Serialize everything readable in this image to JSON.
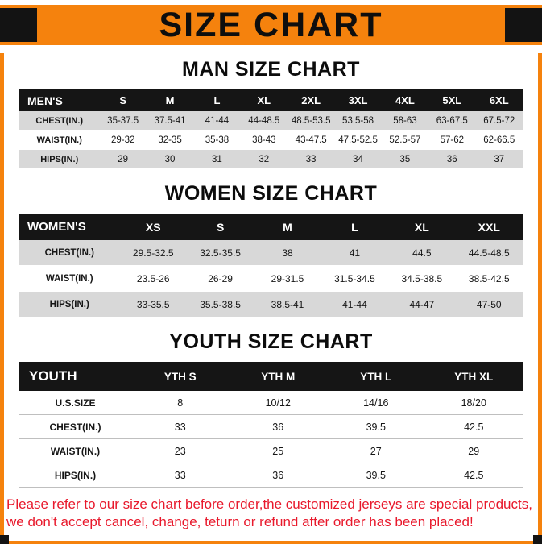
{
  "banner": {
    "title": "SIZE CHART"
  },
  "colors": {
    "orange": "#F5820D",
    "header_black": "#151515",
    "stripe_gray": "#D8D8D8",
    "footer_red": "#E8192C"
  },
  "man": {
    "heading": "MAN SIZE CHART",
    "table": {
      "header": [
        "MEN'S",
        "S",
        "M",
        "L",
        "XL",
        "2XL",
        "3XL",
        "4XL",
        "5XL",
        "6XL"
      ],
      "rows": [
        [
          "CHEST(IN.)",
          "35-37.5",
          "37.5-41",
          "41-44",
          "44-48.5",
          "48.5-53.5",
          "53.5-58",
          "58-63",
          "63-67.5",
          "67.5-72"
        ],
        [
          "WAIST(IN.)",
          "29-32",
          "32-35",
          "35-38",
          "38-43",
          "43-47.5",
          "47.5-52.5",
          "52.5-57",
          "57-62",
          "62-66.5"
        ],
        [
          "HIPS(IN.)",
          "29",
          "30",
          "31",
          "32",
          "33",
          "34",
          "35",
          "36",
          "37"
        ]
      ]
    }
  },
  "women": {
    "heading": "WOMEN SIZE CHART",
    "table": {
      "header": [
        "WOMEN'S",
        "XS",
        "S",
        "M",
        "L",
        "XL",
        "XXL"
      ],
      "rows": [
        [
          "CHEST(IN.)",
          "29.5-32.5",
          "32.5-35.5",
          "38",
          "41",
          "44.5",
          "44.5-48.5"
        ],
        [
          "WAIST(IN.)",
          "23.5-26",
          "26-29",
          "29-31.5",
          "31.5-34.5",
          "34.5-38.5",
          "38.5-42.5"
        ],
        [
          "HIPS(IN.)",
          "33-35.5",
          "35.5-38.5",
          "38.5-41",
          "41-44",
          "44-47",
          "47-50"
        ]
      ]
    }
  },
  "youth": {
    "heading": "YOUTH SIZE CHART",
    "table": {
      "header": [
        "YOUTH",
        "YTH S",
        "YTH M",
        "YTH L",
        "YTH XL"
      ],
      "rows": [
        [
          "U.S.SIZE",
          "8",
          "10/12",
          "14/16",
          "18/20"
        ],
        [
          "CHEST(IN.)",
          "33",
          "36",
          "39.5",
          "42.5"
        ],
        [
          "WAIST(IN.)",
          "23",
          "25",
          "27",
          "29"
        ],
        [
          "HIPS(IN.)",
          "33",
          "36",
          "39.5",
          "42.5"
        ]
      ]
    }
  },
  "footer": {
    "line1": "Please refer to our size chart before order,the customized jerseys are special products,",
    "line2": "we don't accept cancel, change, teturn or refund after order has been placed!"
  }
}
